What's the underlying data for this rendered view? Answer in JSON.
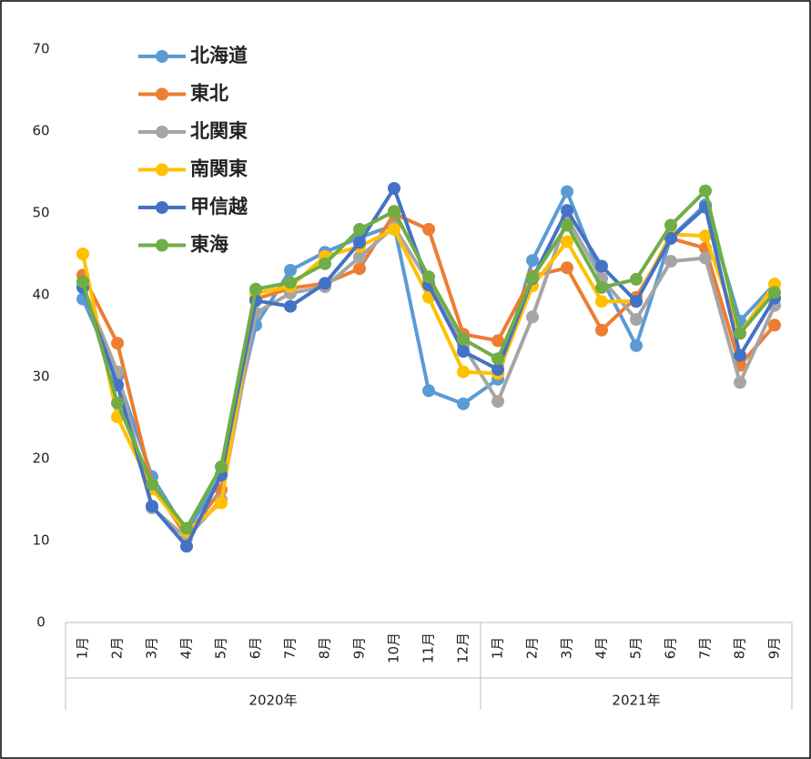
{
  "chart_data": {
    "type": "line",
    "groups": [
      {
        "label": "2020年",
        "categories": [
          "1月",
          "2月",
          "3月",
          "4月",
          "5月",
          "6月",
          "7月",
          "8月",
          "9月",
          "10月",
          "11月",
          "12月"
        ]
      },
      {
        "label": "2021年",
        "categories": [
          "1月",
          "2月",
          "3月",
          "4月",
          "5月",
          "6月",
          "7月",
          "8月",
          "9月"
        ]
      }
    ],
    "series": [
      {
        "name": "北海道",
        "color": "#5b9bd5",
        "values": [
          39.5,
          30,
          17.8,
          11,
          18,
          36.3,
          43,
          45.2,
          47,
          48.5,
          28.3,
          26.7,
          29.7,
          44.2,
          52.6,
          42,
          33.8,
          47,
          51,
          36.8,
          41.3
        ]
      },
      {
        "name": "東北",
        "color": "#ed7d31",
        "values": [
          42.4,
          34.1,
          16.9,
          10.5,
          16.2,
          39.5,
          40.8,
          41.4,
          43.2,
          49.9,
          48,
          35.2,
          34.4,
          42.3,
          43.3,
          35.7,
          39.7,
          46.9,
          45.7,
          31.4,
          36.3
        ]
      },
      {
        "name": "北関東",
        "color": "#a5a5a5",
        "values": [
          41,
          30.6,
          14,
          10.3,
          15,
          37.8,
          40.2,
          41,
          44.6,
          48.3,
          41.5,
          33.8,
          27,
          37.3,
          49.4,
          42,
          37,
          44.1,
          44.5,
          29.3,
          38.7
        ]
      },
      {
        "name": "南関東",
        "color": "#ffc000",
        "values": [
          45,
          25.1,
          16.3,
          11.1,
          14.6,
          40.2,
          41,
          44.7,
          45.9,
          48,
          39.7,
          30.6,
          30.4,
          41.1,
          46.5,
          39.2,
          39.2,
          47.4,
          47.2,
          35.3,
          41.3
        ]
      },
      {
        "name": "甲信越",
        "color": "#4472c4",
        "values": [
          40.9,
          29,
          14.2,
          9.3,
          18,
          39.3,
          38.6,
          41.4,
          46.4,
          53,
          41.2,
          33.1,
          30.9,
          42,
          50.3,
          43.5,
          39.2,
          46.9,
          50.7,
          32.6,
          39.6
        ]
      },
      {
        "name": "東海",
        "color": "#70ad47",
        "values": [
          41.6,
          26.8,
          16.9,
          11.5,
          19,
          40.7,
          41.5,
          43.8,
          48,
          50.2,
          42.2,
          34.6,
          32.2,
          42.1,
          48.5,
          40.9,
          41.9,
          48.5,
          52.7,
          35.3,
          40.3
        ]
      }
    ],
    "ylim": [
      0,
      70
    ],
    "yticks": [
      0,
      10,
      20,
      30,
      40,
      50,
      60,
      70
    ],
    "grid": false,
    "legend": "top-left"
  }
}
